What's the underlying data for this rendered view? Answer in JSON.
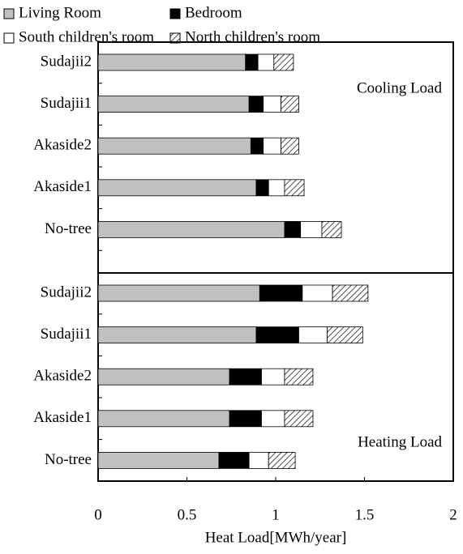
{
  "chart_data": {
    "type": "bar",
    "orientation": "horizontal",
    "stacked": true,
    "xlabel": "Heat Load[MWh/year]",
    "xlim": [
      0,
      2
    ],
    "xticks": [
      0,
      0.5,
      1,
      1.5,
      2
    ],
    "series": [
      {
        "name": "Living Room",
        "color": "#c0c0c0",
        "pattern": "solid"
      },
      {
        "name": "Bedroom",
        "color": "#000000",
        "pattern": "solid"
      },
      {
        "name": "South children's room",
        "color": "#ffffff",
        "pattern": "solid"
      },
      {
        "name": "North children's room",
        "color": "#ffffff",
        "pattern": "hatch"
      }
    ],
    "panels": [
      {
        "annotation": "Cooling Load",
        "categories": [
          "Sudajii2",
          "Sudajii1",
          "Akaside2",
          "Akaside1",
          "No-tree"
        ],
        "values": [
          [
            0.83,
            0.85,
            0.86,
            0.89,
            1.05
          ],
          [
            0.07,
            0.08,
            0.07,
            0.07,
            0.09
          ],
          [
            0.09,
            0.1,
            0.1,
            0.09,
            0.12
          ],
          [
            0.11,
            0.1,
            0.1,
            0.11,
            0.11
          ]
        ]
      },
      {
        "annotation": "Heating Load",
        "categories": [
          "Sudajii2",
          "Sudajii1",
          "Akaside2",
          "Akaside1",
          "No-tree"
        ],
        "values": [
          [
            0.91,
            0.89,
            0.74,
            0.74,
            0.68
          ],
          [
            0.24,
            0.24,
            0.18,
            0.18,
            0.17
          ],
          [
            0.17,
            0.16,
            0.13,
            0.13,
            0.11
          ],
          [
            0.2,
            0.2,
            0.16,
            0.16,
            0.15
          ]
        ]
      }
    ]
  }
}
